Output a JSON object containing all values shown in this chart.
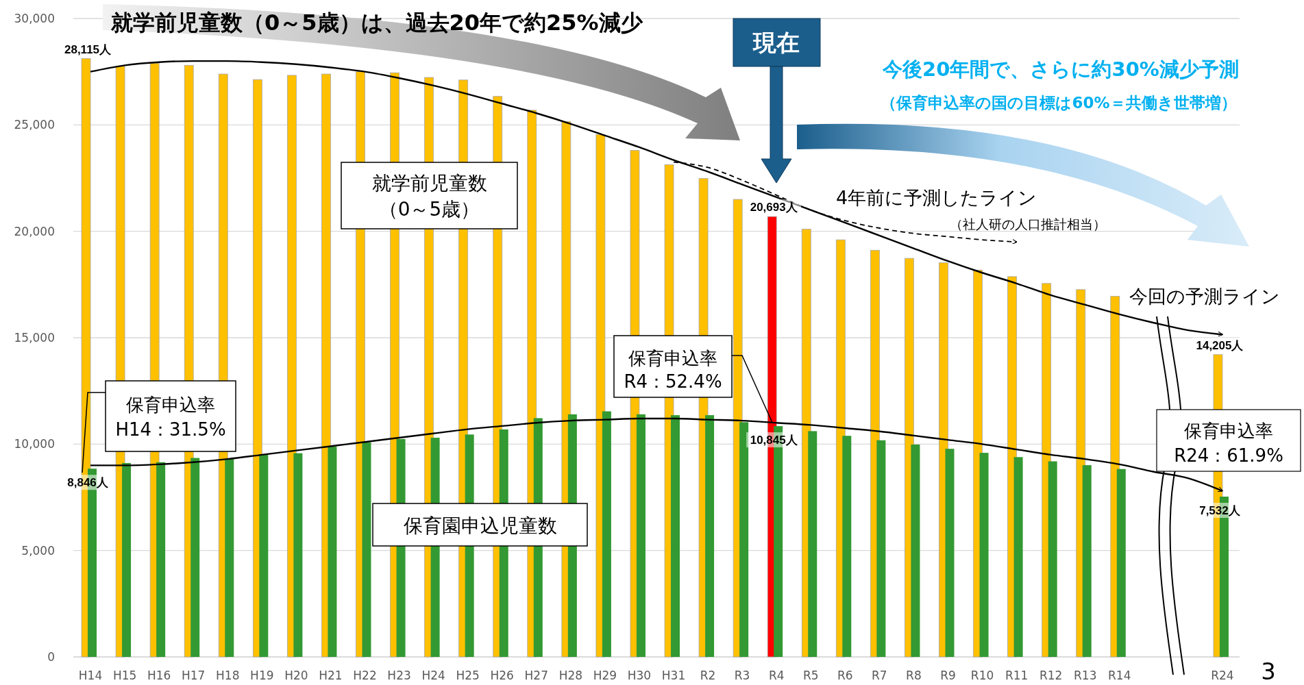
{
  "chart_data": {
    "type": "bar",
    "title": "就学前児童数（0～5歳）は、過去20年で約25%減少",
    "categories": [
      "H14",
      "H15",
      "H16",
      "H17",
      "H18",
      "H19",
      "H20",
      "H21",
      "H22",
      "H23",
      "H24",
      "H25",
      "H26",
      "H27",
      "H28",
      "H29",
      "H30",
      "H31",
      "R2",
      "R3",
      "R4",
      "R5",
      "R6",
      "R7",
      "R8",
      "R9",
      "R10",
      "R11",
      "R12",
      "R13",
      "R14",
      null,
      null,
      "R24"
    ],
    "series": [
      {
        "name": "就学前児童数（0～5歳）",
        "color": "#ffc000",
        "colors": [
          null,
          null,
          null,
          null,
          null,
          null,
          null,
          null,
          null,
          null,
          null,
          null,
          null,
          null,
          null,
          null,
          null,
          null,
          null,
          null,
          "#ff0000",
          null,
          null,
          null,
          null,
          null,
          null,
          null,
          null,
          null,
          null,
          null,
          null,
          null
        ],
        "values": [
          28115,
          27760,
          27900,
          27800,
          27390,
          27130,
          27330,
          27390,
          27500,
          27450,
          27230,
          27110,
          26340,
          25690,
          25160,
          24550,
          23800,
          23130,
          22480,
          21500,
          20693,
          20100,
          19600,
          19110,
          18730,
          18520,
          18180,
          17870,
          17550,
          17260,
          16950,
          null,
          null,
          14205
        ],
        "value_labels": [
          "28,115人",
          null,
          null,
          null,
          null,
          null,
          null,
          null,
          null,
          null,
          null,
          null,
          null,
          null,
          null,
          null,
          null,
          null,
          null,
          null,
          "20,693人",
          null,
          null,
          null,
          null,
          null,
          null,
          null,
          null,
          null,
          null,
          null,
          null,
          "14,205人"
        ]
      },
      {
        "name": "保育園申込児童数",
        "color": "#339933",
        "values": [
          8846,
          9110,
          9150,
          9350,
          9330,
          9530,
          9570,
          9880,
          10080,
          10240,
          10300,
          10450,
          10690,
          11220,
          11400,
          11540,
          11400,
          11360,
          11360,
          11030,
          10845,
          10610,
          10390,
          10180,
          9980,
          9780,
          9590,
          9390,
          9190,
          9010,
          8830,
          null,
          null,
          7532
        ],
        "value_labels": [
          "8,846人",
          null,
          null,
          null,
          null,
          null,
          null,
          null,
          null,
          null,
          null,
          null,
          null,
          null,
          null,
          null,
          null,
          null,
          null,
          null,
          "10,845人",
          null,
          null,
          null,
          null,
          null,
          null,
          null,
          null,
          null,
          null,
          null,
          null,
          "7,532人"
        ]
      },
      {
        "name": "今回の予測ライン",
        "type": "line",
        "color": "#000000",
        "values": [
          27500,
          27800,
          27950,
          28000,
          28000,
          27950,
          27850,
          27700,
          27500,
          27200,
          26850,
          26450,
          26000,
          25550,
          25050,
          24500,
          23950,
          23350,
          22800,
          22200,
          21600,
          21000,
          20400,
          19800,
          19200,
          18600,
          18050,
          17550,
          17000,
          16550,
          16100,
          15700,
          15350,
          15150
        ]
      },
      {
        "type": "line",
        "color": "#000000",
        "values": [
          9000,
          9000,
          9050,
          9150,
          9300,
          9500,
          9700,
          9900,
          10100,
          10300,
          10500,
          10700,
          10850,
          11000,
          11100,
          11150,
          11200,
          11200,
          11150,
          11100,
          11000,
          10900,
          10750,
          10600,
          10400,
          10200,
          10000,
          9750,
          9500,
          9300,
          9050,
          8700,
          8400,
          7800
        ]
      },
      {
        "name": "4年前に予測したライン",
        "type": "line",
        "color": "#000000",
        "line_style": "dashed",
        "values": [
          null,
          null,
          null,
          null,
          null,
          null,
          null,
          null,
          null,
          null,
          null,
          null,
          null,
          null,
          null,
          null,
          null,
          23250,
          23000,
          22400,
          21700,
          21000,
          20500,
          20150,
          19900,
          19750,
          19600,
          19500,
          null,
          null,
          null,
          null,
          null,
          null
        ]
      }
    ],
    "ylim": [
      0,
      30000
    ],
    "yticks": [
      0,
      {
        "value": 5000,
        "label": "5,000"
      },
      {
        "value": 10000,
        "label": "10,000"
      },
      {
        "value": 15000,
        "label": "15,000"
      },
      {
        "value": 20000,
        "label": "20,000"
      },
      {
        "value": 25000,
        "label": "25,000"
      },
      {
        "value": 30000,
        "label": "30,000"
      }
    ],
    "grid": "y",
    "marker": "none",
    "annotations": [
      "現在",
      "今後20年間で、さらに約30%減少予測",
      "（保育申込率の国の目標は60%＝共働き世帯増）",
      "（社人研の人口推計相当）",
      {
        "text": "保育申込率\nH14：31.5%",
        "x": "H14"
      },
      {
        "text": "保育申込率\nR4：52.4%",
        "x": "R4",
        "y": 11000
      },
      "保育申込率\nR24：61.9%",
      "3"
    ]
  }
}
